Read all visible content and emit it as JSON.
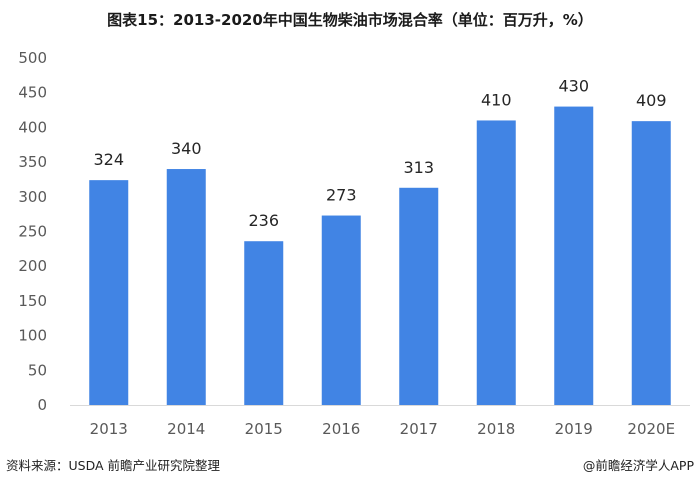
{
  "chart_data": {
    "type": "bar",
    "title": "图表15：2013-2020年中国生物柴油市场混合率（单位：百万升，%）",
    "categories": [
      "2013",
      "2014",
      "2015",
      "2016",
      "2017",
      "2018",
      "2019",
      "2020E"
    ],
    "values": [
      324,
      340,
      236,
      273,
      313,
      410,
      430,
      409
    ],
    "ylim": [
      0,
      500
    ],
    "yticks": [
      "0",
      "50",
      "100",
      "150",
      "200",
      "250",
      "300",
      "350",
      "400",
      "450",
      "500"
    ],
    "xlabel": "",
    "ylabel": "",
    "grid": false,
    "bar_color": "#4184E4",
    "data_labels": true
  },
  "footer": {
    "source": "资料来源：USDA 前瞻产业研究院整理",
    "credit": "@前瞻经济学人APP"
  }
}
